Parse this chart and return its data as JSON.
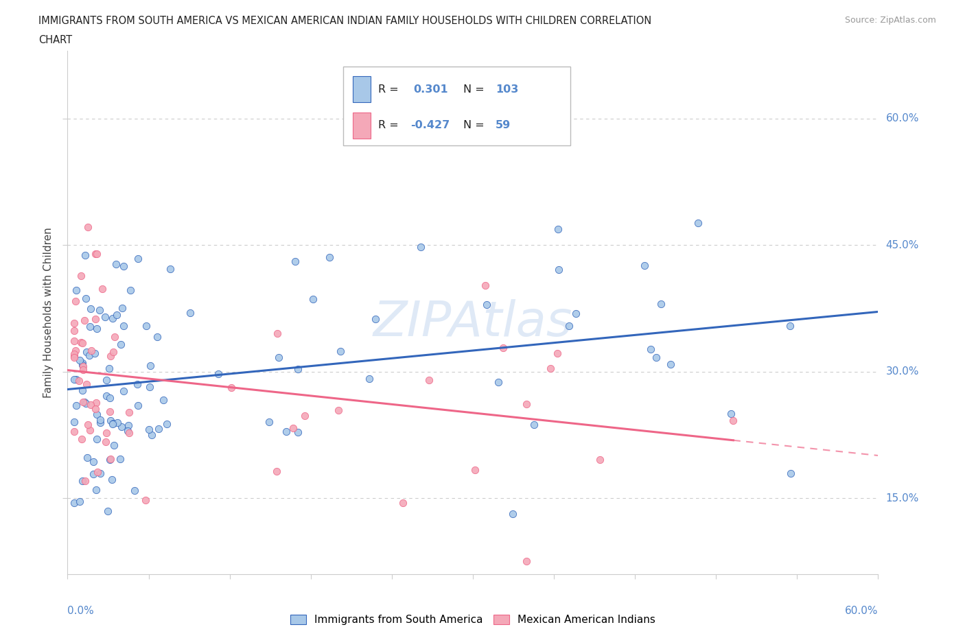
{
  "title_line1": "IMMIGRANTS FROM SOUTH AMERICA VS MEXICAN AMERICAN INDIAN FAMILY HOUSEHOLDS WITH CHILDREN CORRELATION",
  "title_line2": "CHART",
  "source": "Source: ZipAtlas.com",
  "ylabel": "Family Households with Children",
  "ytick_labels": [
    "15.0%",
    "30.0%",
    "45.0%",
    "60.0%"
  ],
  "ytick_values": [
    0.15,
    0.3,
    0.45,
    0.6
  ],
  "xmin": 0.0,
  "xmax": 0.6,
  "ymin": 0.06,
  "ymax": 0.68,
  "r_blue": 0.301,
  "n_blue": 103,
  "r_pink": -0.427,
  "n_pink": 59,
  "color_blue": "#a8c8e8",
  "color_pink": "#f4a8b8",
  "line_blue": "#3366bb",
  "line_pink": "#ee6688",
  "watermark": "ZIPAtlas",
  "legend_label_blue": "Immigrants from South America",
  "legend_label_pink": "Mexican American Indians",
  "label_color": "#5588cc",
  "text_color": "#222222",
  "grid_color": "#cccccc"
}
